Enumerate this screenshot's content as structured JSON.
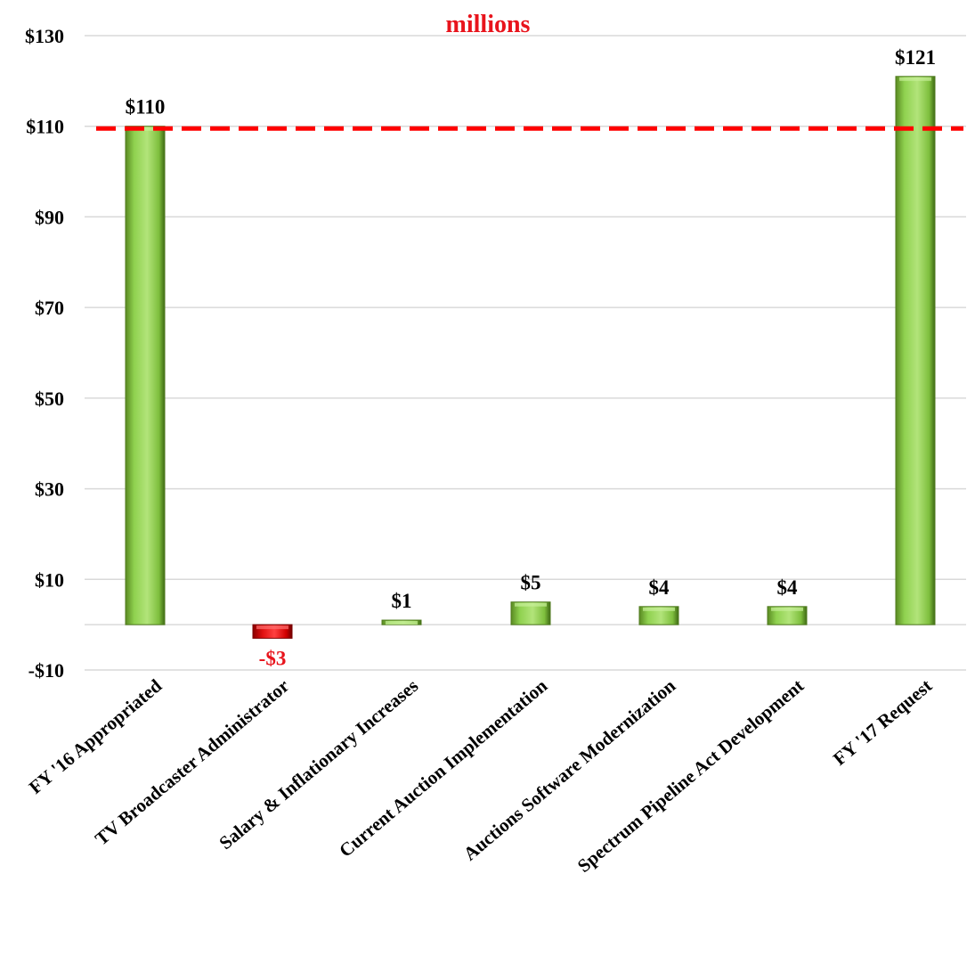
{
  "chart_data": {
    "type": "bar",
    "unit_label": "millions",
    "categories": [
      "FY '16 Appropriated",
      "TV Broadcaster Administrator",
      "Salary & Inflationary Increases",
      "Current Auction Implementation",
      "Auctions Software Modernization",
      "Spectrum Pipeline Act Development",
      "FY '17 Request"
    ],
    "values": [
      110,
      -3,
      1,
      5,
      4,
      4,
      121
    ],
    "data_labels": [
      "$110",
      "-$3",
      "$1",
      "$5",
      "$4",
      "$4",
      "$121"
    ],
    "y_ticks": [
      "$130",
      "$110",
      "$90",
      "$70",
      "$50",
      "$30",
      "$10",
      "-$10"
    ],
    "ylim": [
      -10,
      130
    ],
    "reference_line": 109.5,
    "grid": true,
    "colors": {
      "positive": "#8fd14f",
      "positive_dark": "#4f7a1e",
      "negative": "#e01010",
      "reference": "#ff0000",
      "negative_label": "#e8141c"
    }
  }
}
